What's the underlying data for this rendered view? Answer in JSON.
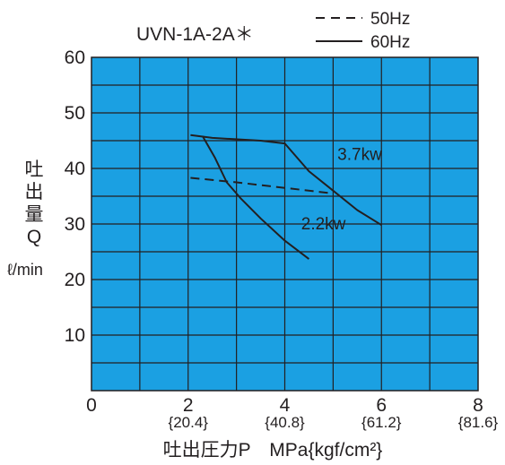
{
  "chart_data": {
    "type": "line",
    "title": "UVN-1A-2A＊",
    "ylabel_chars": [
      "吐",
      "出",
      "量",
      "Q"
    ],
    "ylabel_unit": "ℓ/min",
    "xlabel": "吐出圧力P　MPa{kgf/cm²}",
    "xlim": [
      0,
      8
    ],
    "ylim": [
      0,
      60
    ],
    "x_minor_grid": 1,
    "y_minor_grid": 5,
    "grid": true,
    "plot_background": "#1ba0e2",
    "line_color": "#231f20",
    "x_ticks": [
      {
        "value": 0,
        "label": "0",
        "sublabel": ""
      },
      {
        "value": 2,
        "label": "2",
        "sublabel": "{20.4}"
      },
      {
        "value": 4,
        "label": "4",
        "sublabel": "{40.8}"
      },
      {
        "value": 6,
        "label": "6",
        "sublabel": "{61.2}"
      },
      {
        "value": 8,
        "label": "8",
        "sublabel": "{81.6}"
      }
    ],
    "y_ticks": [
      10,
      20,
      30,
      40,
      50,
      60
    ],
    "legend": {
      "placement": "top-right",
      "entries": [
        {
          "label": "50Hz",
          "style": "dashed"
        },
        {
          "label": "60Hz",
          "style": "solid"
        }
      ]
    },
    "series": [
      {
        "freq": "60Hz",
        "power": "3.7kw",
        "style": "solid",
        "points": [
          [
            2.05,
            46.0
          ],
          [
            2.5,
            45.5
          ],
          [
            3.5,
            45.0
          ],
          [
            4.0,
            44.5
          ],
          [
            4.5,
            39.5
          ],
          [
            5.0,
            36.0
          ],
          [
            5.5,
            32.5
          ],
          [
            6.0,
            29.8
          ]
        ]
      },
      {
        "freq": "60Hz",
        "power": "2.2kw",
        "style": "solid",
        "points": [
          [
            2.3,
            45.8
          ],
          [
            2.55,
            42.0
          ],
          [
            2.8,
            37.5
          ],
          [
            3.1,
            34.5
          ],
          [
            3.5,
            31.0
          ],
          [
            4.0,
            27.0
          ],
          [
            4.5,
            23.7
          ]
        ]
      },
      {
        "freq": "50Hz",
        "power": "",
        "style": "dashed",
        "points": [
          [
            2.05,
            38.3
          ],
          [
            3.0,
            37.5
          ],
          [
            4.0,
            36.5
          ],
          [
            5.0,
            35.5
          ]
        ]
      }
    ],
    "annotations": [
      {
        "text": "3.7kw",
        "x": 5.55,
        "y": 41.5
      },
      {
        "text": "2.2kw",
        "x": 4.8,
        "y": 29.0
      }
    ]
  }
}
